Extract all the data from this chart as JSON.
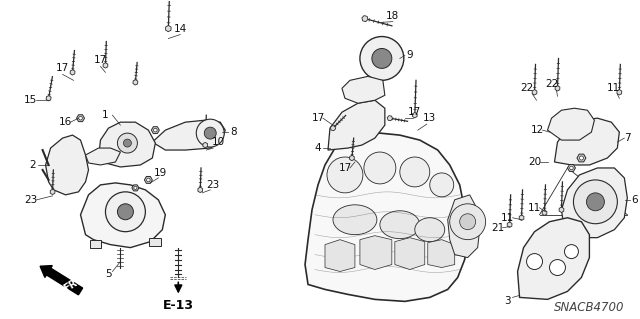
{
  "background_color": "#ffffff",
  "fig_width": 6.4,
  "fig_height": 3.19,
  "dpi": 100,
  "diagram_code": "SNACB4700",
  "line_color": "#2a2a2a",
  "text_color": "#111111",
  "font_size": 7.5
}
